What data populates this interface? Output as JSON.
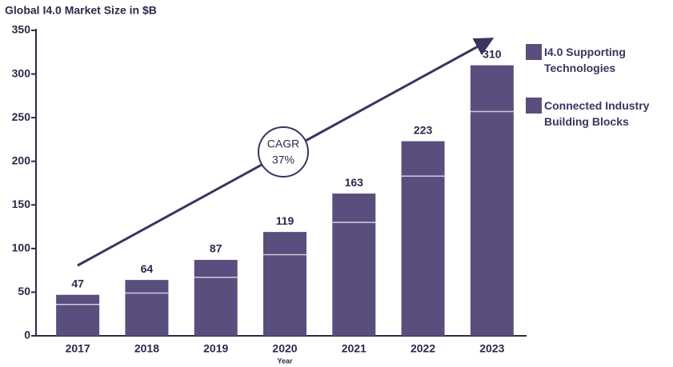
{
  "chart_data": {
    "type": "stacked_bar",
    "title": "Global I4.0 Market Size in $B",
    "x_label": "Year",
    "categories": [
      "2017",
      "2018",
      "2019",
      "2020",
      "2021",
      "2022",
      "2023"
    ],
    "series": [
      {
        "name": "Connected Industry Building Blocks",
        "color": "#5a4e7e",
        "values": [
          36,
          49,
          67,
          93,
          130,
          183,
          257
        ]
      },
      {
        "name": "I4.0 Supporting Technologies",
        "color": "#5a4e7e",
        "values": [
          11,
          15,
          20,
          26,
          33,
          40,
          53
        ]
      }
    ],
    "total_labels": [
      "47",
      "64",
      "87",
      "119",
      "163",
      "223",
      "310"
    ],
    "annotation": {
      "line1": "CAGR",
      "line2": "37%"
    },
    "ylim": [
      0,
      350
    ],
    "yticks": [
      0,
      50,
      100,
      150,
      200,
      250,
      300,
      350
    ],
    "grid": false
  }
}
